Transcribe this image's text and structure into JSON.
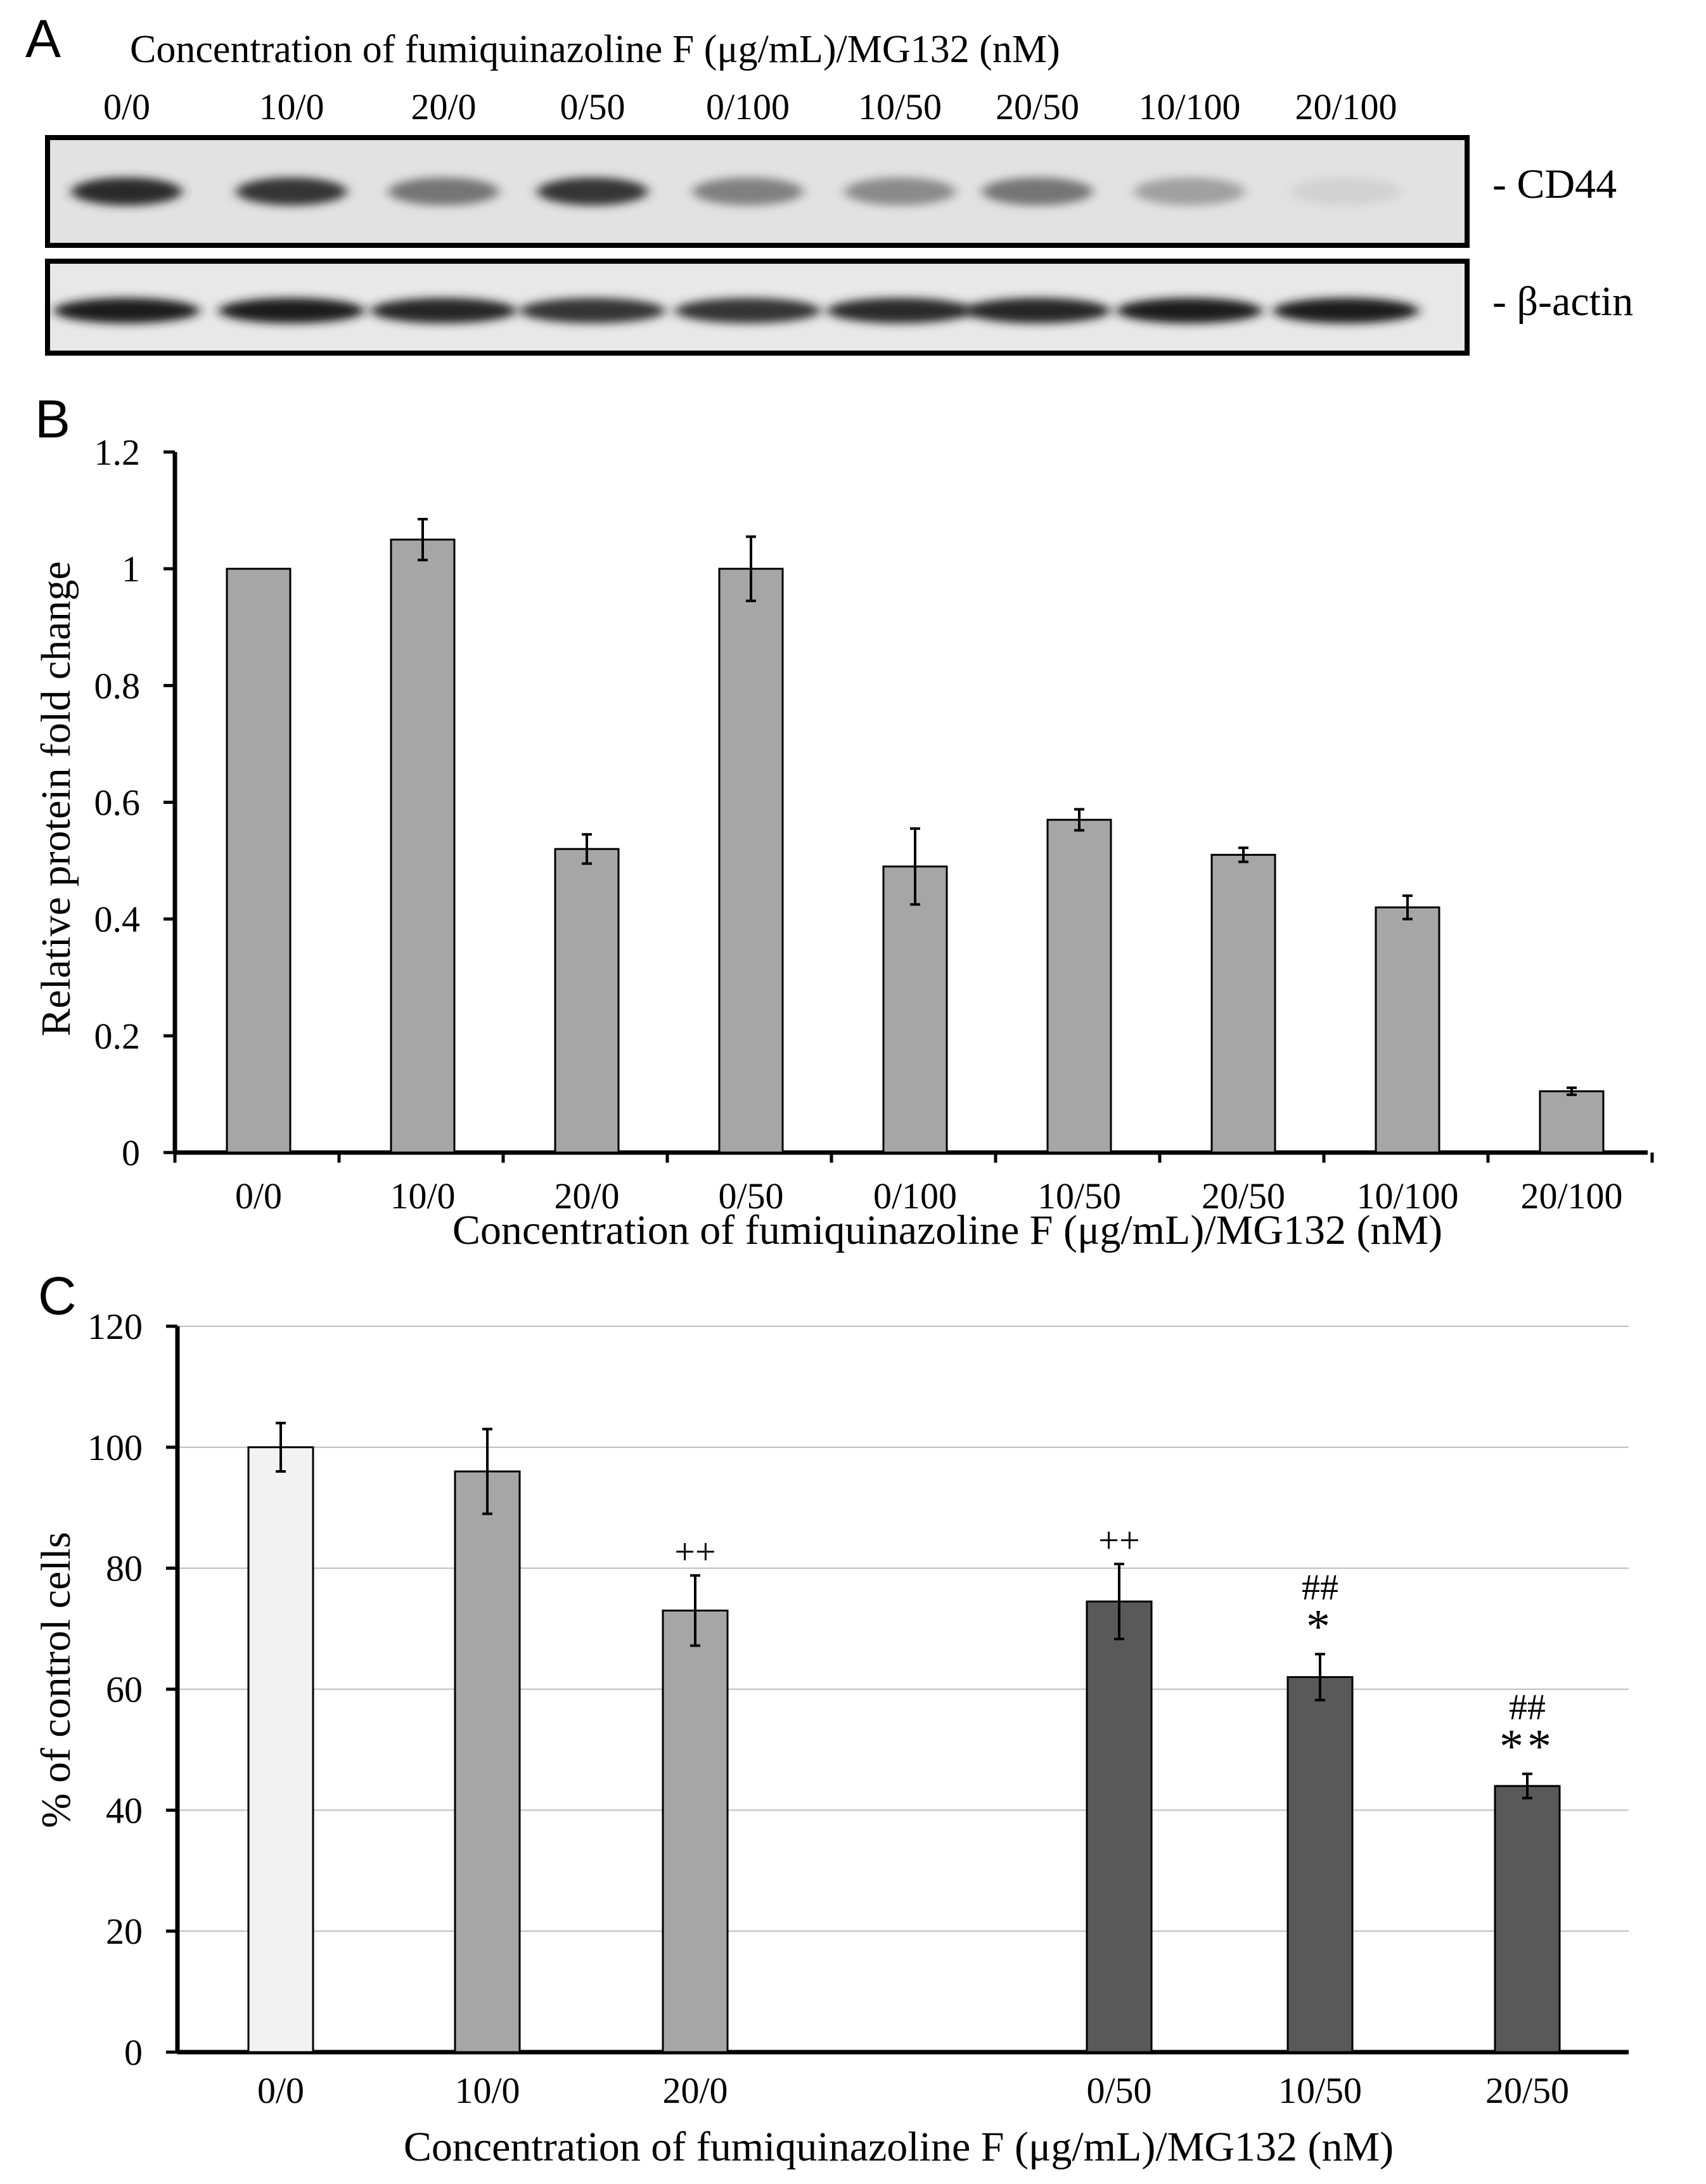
{
  "panel_a": {
    "label": "A",
    "title": "Concentration of fumiquinazoline F (μg/mL)/MG132 (nM)",
    "lanes": [
      "0/0",
      "10/0",
      "20/0",
      "0/50",
      "0/100",
      "10/50",
      "20/50",
      "10/100",
      "20/100"
    ],
    "blots": [
      {
        "name": "- CD44",
        "band_intensity": [
          0.9,
          0.85,
          0.55,
          0.85,
          0.5,
          0.45,
          0.55,
          0.35,
          0.12
        ]
      },
      {
        "name": "- β-actin",
        "band_intensity": [
          0.95,
          0.95,
          0.92,
          0.85,
          0.85,
          0.9,
          0.92,
          0.95,
          0.97
        ]
      }
    ]
  },
  "chart_data": [
    {
      "type": "bar",
      "panel_label": "B",
      "categories": [
        "0/0",
        "10/0",
        "20/0",
        "0/50",
        "0/100",
        "10/50",
        "20/50",
        "10/100",
        "20/100"
      ],
      "values": [
        1.0,
        1.05,
        0.52,
        1.0,
        0.49,
        0.57,
        0.51,
        0.42,
        0.105
      ],
      "errors": [
        0.0,
        0.035,
        0.025,
        0.055,
        0.065,
        0.018,
        0.012,
        0.02,
        0.006
      ],
      "bar_color": "#a6a6a6",
      "xlabel": "Concentration of fumiquinazoline F (μg/mL)/MG132 (nM)",
      "ylabel": "Relative protein fold change",
      "ylim": [
        0,
        1.2
      ],
      "yticks": [
        "0",
        "0.2",
        "0.4",
        "0.6",
        "0.8",
        "1",
        "1.2"
      ],
      "grid": false
    },
    {
      "type": "bar",
      "panel_label": "C",
      "categories": [
        "0/0",
        "10/0",
        "20/0",
        "0/50",
        "10/50",
        "20/50"
      ],
      "values": [
        100,
        96,
        73,
        74.5,
        62,
        44
      ],
      "errors": [
        4,
        7,
        5.8,
        6.2,
        3.8,
        2
      ],
      "bar_colors": [
        "#f2f2f2",
        "#a6a6a6",
        "#a6a6a6",
        "#595959",
        "#595959",
        "#595959"
      ],
      "annotations": [
        {
          "category": "20/0",
          "lines": [
            "++"
          ]
        },
        {
          "category": "0/50",
          "lines": [
            "++"
          ]
        },
        {
          "category": "10/50",
          "lines": [
            "##",
            "*"
          ]
        },
        {
          "category": "20/50",
          "lines": [
            "##",
            "**"
          ]
        }
      ],
      "xlabel": "Concentration of fumiquinazoline F (μg/mL)/MG132 (nM)",
      "ylabel": "% of control cells",
      "ylim": [
        0,
        120
      ],
      "yticks": [
        "0",
        "20",
        "40",
        "60",
        "80",
        "100",
        "120"
      ],
      "grid": true
    }
  ]
}
